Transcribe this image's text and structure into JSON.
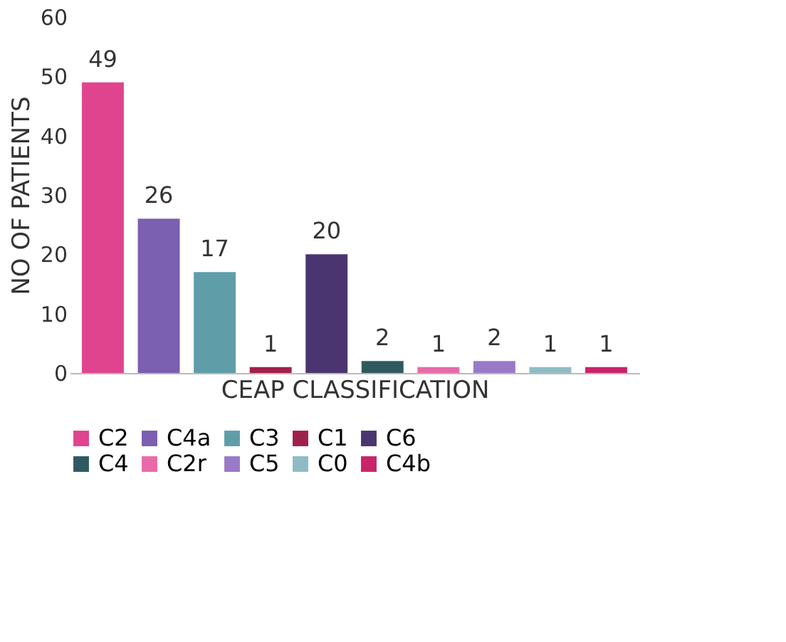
{
  "chart_data": {
    "type": "bar",
    "xlabel": "CEAP CLASSIFICATION",
    "ylabel": "NO OF PATIENTS",
    "categories": [
      null
    ],
    "series": [
      {
        "name": "C2",
        "color": "#e0448e",
        "values": [
          49
        ]
      },
      {
        "name": "C4a",
        "color": "#7b5fb0",
        "values": [
          26
        ]
      },
      {
        "name": "C3",
        "color": "#5f9ea8",
        "values": [
          17
        ]
      },
      {
        "name": "C1",
        "color": "#a0204c",
        "values": [
          1
        ]
      },
      {
        "name": "C6",
        "color": "#4a3570",
        "values": [
          20
        ]
      },
      {
        "name": "C4",
        "color": "#2f5a60",
        "values": [
          2
        ]
      },
      {
        "name": "C2r",
        "color": "#e86aa8",
        "values": [
          1
        ]
      },
      {
        "name": "C5",
        "color": "#9a7ac8",
        "values": [
          2
        ]
      },
      {
        "name": "C0",
        "color": "#8fbcc4",
        "values": [
          1
        ]
      },
      {
        "name": "C4b",
        "color": "#c8246a",
        "values": [
          1
        ]
      }
    ],
    "ylim": [
      0,
      60
    ],
    "yticks": [
      0,
      10,
      20,
      30,
      40,
      50,
      60
    ],
    "grid": false,
    "legend": "bottom",
    "tick_labels": "y",
    "data_labels": true
  }
}
